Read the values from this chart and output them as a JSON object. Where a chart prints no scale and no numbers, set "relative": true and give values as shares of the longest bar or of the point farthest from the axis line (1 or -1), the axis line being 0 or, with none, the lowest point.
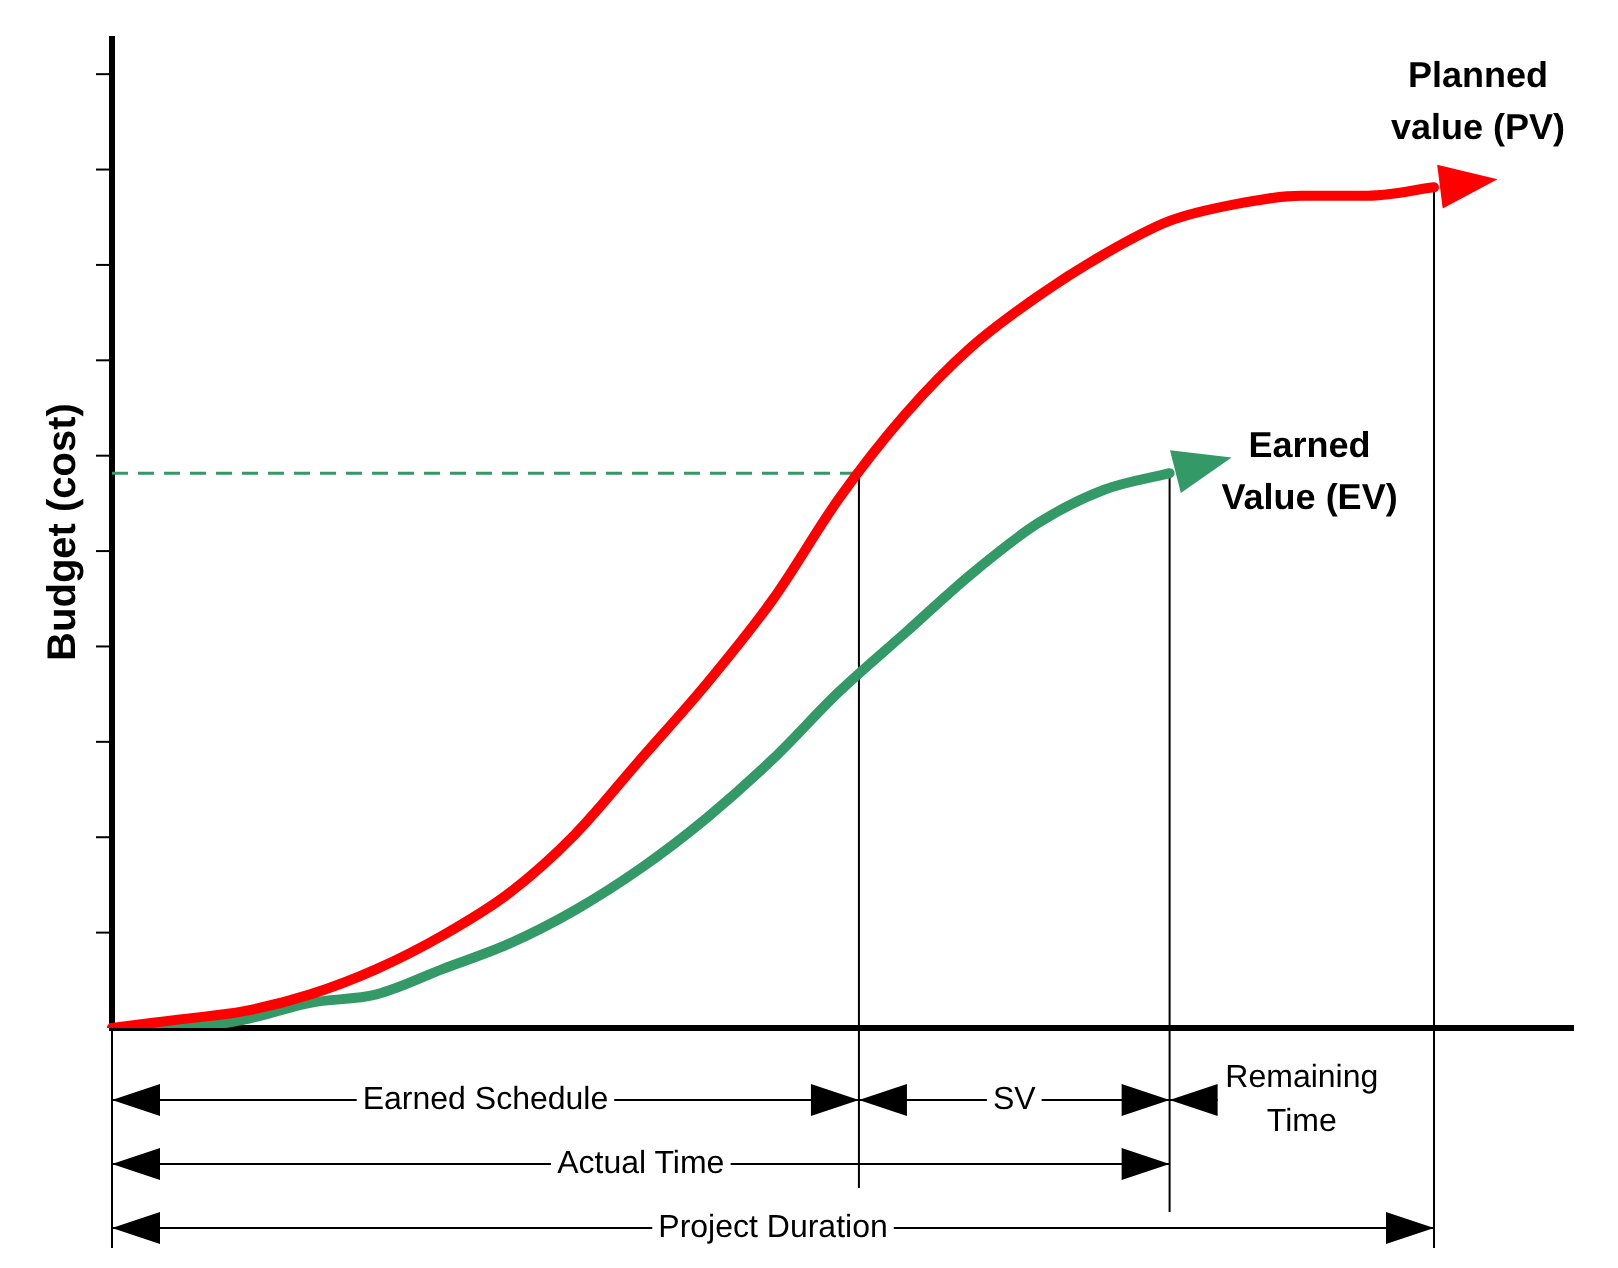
{
  "chart_data": {
    "type": "line",
    "relative": true,
    "ylabel": "Budget (cost)",
    "categories": [
      null,
      null,
      null,
      null,
      null,
      null,
      null,
      null,
      null,
      null,
      null,
      null,
      null,
      null,
      null,
      null,
      null,
      null,
      null,
      null,
      null
    ],
    "series": [
      {
        "name": "Planned value (PV)",
        "color": "#ff0000",
        "values": [
          0,
          0.01,
          0.02,
          0.04,
          0.07,
          0.11,
          0.16,
          0.23,
          0.32,
          0.41,
          0.51,
          0.63,
          0.73,
          0.81,
          0.87,
          0.92,
          0.96,
          0.98,
          0.99,
          0.99,
          1
        ]
      },
      {
        "name": "Earned Value (EV)",
        "color": "#339966",
        "values": [
          0,
          0,
          0.01,
          0.03,
          0.04,
          0.07,
          0.1,
          0.14,
          0.19,
          0.25,
          0.32,
          0.4,
          0.47,
          0.54,
          0.6,
          0.64,
          0.66,
          null,
          null,
          null,
          null
        ]
      }
    ],
    "ref_lines": [
      {
        "axis": "y",
        "value": 0.66,
        "color": "#339966",
        "line_style": "dashed"
      }
    ],
    "annotations": [
      "Earned Schedule",
      "SV",
      "Remaining Time",
      "Actual Time",
      "Project Duration"
    ],
    "grid": false,
    "legend": false,
    "marker": "none",
    "line_style": "solid"
  }
}
